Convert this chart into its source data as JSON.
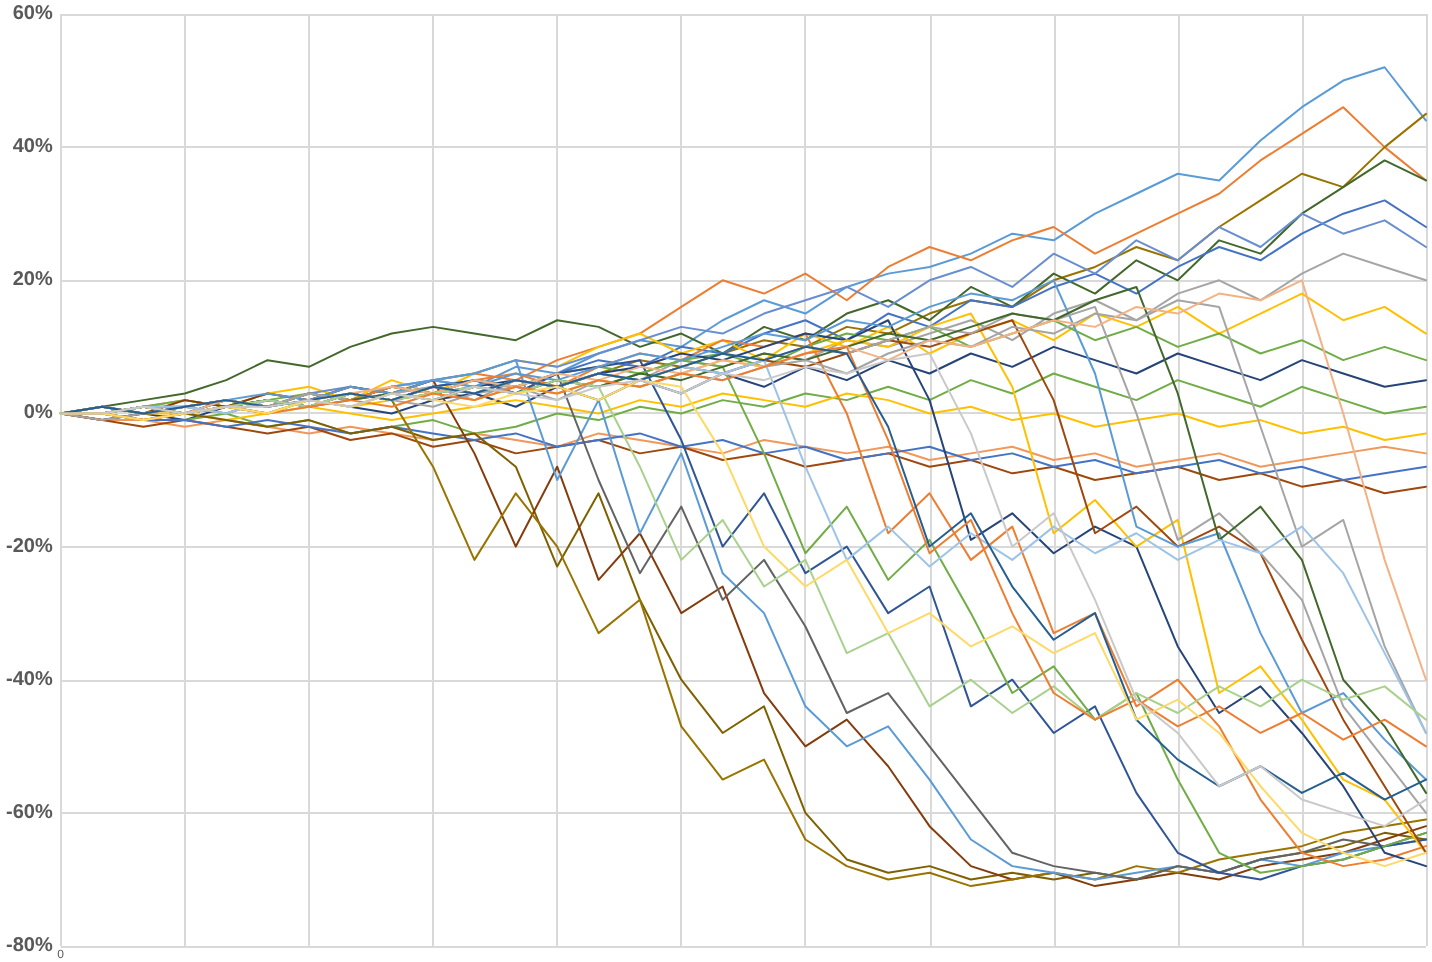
{
  "chart_data": {
    "type": "line",
    "grid": true,
    "marker": "none",
    "line_style": "solid",
    "categories": [
      "0",
      null,
      null,
      null,
      null,
      null,
      null,
      null,
      null,
      null,
      null,
      null,
      null,
      null,
      null,
      null,
      null,
      null,
      null,
      null,
      null,
      null,
      null,
      null,
      null,
      null,
      null,
      null,
      null,
      null,
      null,
      null,
      null,
      null
    ],
    "ylim": [
      -80,
      60
    ],
    "yticks": [
      {
        "value": -80,
        "label": "-80%"
      },
      {
        "value": -60,
        "label": "-60%"
      },
      {
        "value": -40,
        "label": "-40%"
      },
      {
        "value": -20,
        "label": "-20%"
      },
      {
        "value": 0,
        "label": "0%"
      },
      {
        "value": 20,
        "label": "20%"
      },
      {
        "value": 40,
        "label": "40%"
      },
      {
        "value": 60,
        "label": "60%"
      }
    ],
    "series": [
      {
        "color": "#5b9bd5",
        "values": [
          0,
          0,
          1,
          0,
          2,
          1,
          3,
          2,
          4,
          5,
          4,
          7,
          6,
          9,
          11,
          10,
          14,
          17,
          15,
          19,
          21,
          22,
          24,
          27,
          26,
          30,
          33,
          36,
          35,
          41,
          46,
          50,
          52,
          44
        ]
      },
      {
        "color": "#ed7d31",
        "values": [
          0,
          0,
          1,
          2,
          1,
          3,
          2,
          4,
          3,
          5,
          6,
          5,
          8,
          10,
          12,
          16,
          20,
          18,
          21,
          17,
          22,
          25,
          23,
          26,
          28,
          24,
          27,
          30,
          33,
          38,
          42,
          46,
          40,
          35
        ]
      },
      {
        "color": "#997300",
        "values": [
          0,
          -1,
          0,
          1,
          0,
          2,
          1,
          3,
          2,
          4,
          3,
          5,
          4,
          6,
          8,
          7,
          9,
          11,
          10,
          13,
          12,
          15,
          17,
          16,
          20,
          22,
          25,
          23,
          28,
          32,
          36,
          34,
          40,
          45
        ]
      },
      {
        "color": "#43682b",
        "values": [
          0,
          1,
          2,
          3,
          5,
          8,
          7,
          10,
          12,
          13,
          12,
          11,
          14,
          13,
          10,
          12,
          9,
          13,
          11,
          15,
          17,
          14,
          19,
          16,
          21,
          18,
          23,
          20,
          26,
          24,
          30,
          34,
          38,
          35
        ]
      },
      {
        "color": "#4472c4",
        "values": [
          0,
          0,
          -1,
          0,
          1,
          2,
          1,
          3,
          2,
          4,
          5,
          3,
          6,
          8,
          7,
          10,
          9,
          12,
          14,
          11,
          15,
          13,
          17,
          16,
          19,
          21,
          18,
          22,
          25,
          23,
          27,
          30,
          32,
          28
        ]
      },
      {
        "color": "#a5a5a5",
        "values": [
          0,
          0,
          1,
          0,
          2,
          1,
          3,
          2,
          3,
          4,
          2,
          5,
          4,
          6,
          5,
          8,
          7,
          9,
          8,
          11,
          10,
          12,
          14,
          11,
          15,
          17,
          14,
          18,
          20,
          17,
          21,
          24,
          22,
          20
        ]
      },
      {
        "color": "#ffc000",
        "values": [
          0,
          1,
          0,
          2,
          1,
          3,
          4,
          2,
          5,
          3,
          6,
          8,
          7,
          10,
          12,
          9,
          11,
          8,
          12,
          10,
          13,
          9,
          12,
          14,
          11,
          15,
          13,
          16,
          12,
          15,
          18,
          14,
          16,
          12
        ]
      },
      {
        "color": "#264478",
        "values": [
          0,
          -1,
          0,
          -1,
          1,
          0,
          2,
          1,
          0,
          2,
          3,
          1,
          4,
          2,
          5,
          3,
          6,
          4,
          7,
          5,
          8,
          6,
          9,
          7,
          10,
          8,
          6,
          9,
          7,
          5,
          8,
          6,
          4,
          5
        ]
      },
      {
        "color": "#70ad47",
        "values": [
          0,
          0,
          -1,
          -1,
          0,
          -2,
          -1,
          -3,
          -2,
          -1,
          -3,
          -2,
          0,
          -1,
          1,
          0,
          2,
          1,
          3,
          2,
          4,
          2,
          5,
          3,
          6,
          4,
          2,
          5,
          3,
          1,
          4,
          2,
          0,
          1
        ]
      },
      {
        "color": "#f1975a",
        "values": [
          0,
          -1,
          -1,
          -2,
          -1,
          -2,
          -3,
          -2,
          -3,
          -4,
          -3,
          -4,
          -5,
          -3,
          -4,
          -5,
          -6,
          -4,
          -5,
          -6,
          -5,
          -7,
          -6,
          -5,
          -7,
          -6,
          -8,
          -7,
          -6,
          -8,
          -7,
          -6,
          -5,
          -6
        ]
      },
      {
        "color": "#9e480e",
        "values": [
          0,
          -1,
          -2,
          -1,
          -2,
          -3,
          -2,
          -4,
          -3,
          -5,
          -4,
          -6,
          -5,
          -4,
          -6,
          -5,
          -7,
          -6,
          -8,
          -7,
          -6,
          -8,
          -7,
          -9,
          -8,
          -10,
          -9,
          -8,
          -10,
          -9,
          -11,
          -10,
          -12,
          -11
        ]
      },
      {
        "color": "#698ed0",
        "values": [
          0,
          1,
          0,
          1,
          2,
          1,
          3,
          4,
          3,
          5,
          6,
          8,
          7,
          9,
          11,
          13,
          12,
          15,
          17,
          19,
          16,
          20,
          22,
          19,
          24,
          21,
          26,
          23,
          28,
          25,
          30,
          27,
          29,
          25
        ]
      },
      {
        "color": "#4472c4",
        "values": [
          0,
          0,
          -1,
          -1,
          -2,
          -1,
          -2,
          -3,
          -2,
          -3,
          -4,
          -3,
          -5,
          -4,
          -3,
          -5,
          -4,
          -6,
          -5,
          -7,
          -6,
          -5,
          -7,
          -6,
          -8,
          -7,
          -9,
          -8,
          -7,
          -9,
          -8,
          -10,
          -9,
          -8
        ]
      },
      {
        "color": "#ffc000",
        "values": [
          0,
          1,
          0,
          0,
          -1,
          0,
          1,
          0,
          -1,
          0,
          1,
          2,
          1,
          0,
          2,
          1,
          3,
          2,
          1,
          3,
          2,
          0,
          1,
          -1,
          0,
          -2,
          -1,
          0,
          -2,
          -1,
          -3,
          -2,
          -4,
          -3
        ]
      },
      {
        "color": "#70ad47",
        "values": [
          0,
          0,
          1,
          2,
          1,
          2,
          3,
          2,
          4,
          3,
          5,
          4,
          6,
          7,
          6,
          8,
          9,
          7,
          10,
          12,
          11,
          13,
          10,
          12,
          14,
          11,
          13,
          10,
          12,
          9,
          11,
          8,
          10,
          8
        ]
      },
      {
        "color": "#7f6000",
        "values": [
          0,
          0,
          -1,
          0,
          -1,
          -2,
          -1,
          -3,
          -2,
          -4,
          -3,
          -8,
          -23,
          -12,
          -28,
          -40,
          -48,
          -44,
          -60,
          -67,
          -69,
          -68,
          -70,
          -69,
          -70,
          -69,
          -70,
          -68,
          -69,
          -67,
          -66,
          -65,
          -63,
          -64
        ]
      },
      {
        "color": "#843c0c",
        "values": [
          0,
          1,
          0,
          2,
          1,
          3,
          2,
          4,
          3,
          5,
          -6,
          -20,
          -8,
          -25,
          -18,
          -30,
          -26,
          -42,
          -50,
          -46,
          -53,
          -62,
          -68,
          -70,
          -69,
          -71,
          -70,
          -69,
          -70,
          -68,
          -67,
          -66,
          -64,
          -62
        ]
      },
      {
        "color": "#997300",
        "values": [
          0,
          0,
          1,
          0,
          1,
          2,
          1,
          3,
          2,
          -8,
          -22,
          -12,
          -20,
          -33,
          -28,
          -47,
          -55,
          -52,
          -64,
          -68,
          -70,
          -69,
          -71,
          -70,
          -69,
          -70,
          -68,
          -69,
          -67,
          -66,
          -65,
          -63,
          -62,
          -61
        ]
      },
      {
        "color": "#5b9bd5",
        "values": [
          0,
          1,
          0,
          1,
          2,
          1,
          3,
          2,
          4,
          5,
          6,
          8,
          -10,
          2,
          -18,
          -6,
          -24,
          -30,
          -44,
          -50,
          -47,
          -55,
          -64,
          -68,
          -69,
          -70,
          -69,
          -68,
          -69,
          -67,
          -68,
          -66,
          -65,
          -64
        ]
      },
      {
        "color": "#636363",
        "values": [
          0,
          0,
          1,
          1,
          2,
          1,
          3,
          2,
          4,
          3,
          5,
          4,
          6,
          -10,
          -24,
          -14,
          -28,
          -22,
          -32,
          -45,
          -42,
          -50,
          -58,
          -66,
          -68,
          -69,
          -70,
          -68,
          -69,
          -67,
          -66,
          -64,
          -65,
          -63
        ]
      },
      {
        "color": "#2f5597",
        "values": [
          0,
          0,
          1,
          0,
          2,
          1,
          2,
          3,
          2,
          4,
          5,
          3,
          6,
          7,
          8,
          -4,
          -20,
          -12,
          -24,
          -20,
          -30,
          -26,
          -44,
          -40,
          -48,
          -44,
          -57,
          -66,
          -69,
          -70,
          -68,
          -67,
          -65,
          -64
        ]
      },
      {
        "color": "#70ad47",
        "values": [
          0,
          0,
          -1,
          0,
          1,
          0,
          2,
          1,
          3,
          2,
          4,
          3,
          5,
          4,
          6,
          8,
          7,
          -6,
          -21,
          -14,
          -25,
          -19,
          -30,
          -42,
          -38,
          -46,
          -42,
          -55,
          -66,
          -69,
          -68,
          -67,
          -65,
          -63
        ]
      },
      {
        "color": "#ed7d31",
        "values": [
          0,
          1,
          0,
          1,
          2,
          1,
          3,
          2,
          4,
          3,
          5,
          6,
          4,
          7,
          9,
          8,
          11,
          10,
          12,
          0,
          -18,
          -12,
          -22,
          -17,
          -33,
          -30,
          -44,
          -40,
          -47,
          -58,
          -66,
          -68,
          -67,
          -65
        ]
      },
      {
        "color": "#264478",
        "values": [
          0,
          0,
          1,
          0,
          1,
          2,
          1,
          3,
          2,
          3,
          4,
          5,
          4,
          6,
          7,
          9,
          8,
          10,
          12,
          11,
          14,
          2,
          -19,
          -15,
          -21,
          -17,
          -20,
          -35,
          -45,
          -41,
          -48,
          -56,
          -66,
          -68
        ]
      },
      {
        "color": "#ffc000",
        "values": [
          0,
          0,
          -1,
          0,
          1,
          0,
          2,
          1,
          2,
          3,
          2,
          4,
          3,
          5,
          4,
          6,
          8,
          7,
          9,
          11,
          10,
          13,
          15,
          4,
          -18,
          -13,
          -20,
          -16,
          -42,
          -38,
          -46,
          -55,
          -58,
          -66
        ]
      },
      {
        "color": "#9e480e",
        "values": [
          0,
          0,
          1,
          0,
          1,
          2,
          1,
          3,
          2,
          4,
          3,
          5,
          4,
          6,
          5,
          7,
          6,
          8,
          7,
          9,
          11,
          10,
          12,
          14,
          2,
          -18,
          -14,
          -20,
          -17,
          -21,
          -34,
          -46,
          -56,
          -66
        ]
      },
      {
        "color": "#5b9bd5",
        "values": [
          0,
          1,
          0,
          1,
          2,
          3,
          2,
          4,
          3,
          5,
          4,
          6,
          5,
          7,
          9,
          8,
          10,
          12,
          11,
          14,
          13,
          16,
          18,
          17,
          20,
          6,
          -17,
          -20,
          -18,
          -33,
          -45,
          -42,
          -49,
          -55
        ]
      },
      {
        "color": "#a5a5a5",
        "values": [
          0,
          0,
          1,
          1,
          2,
          1,
          3,
          2,
          3,
          4,
          3,
          5,
          4,
          6,
          5,
          7,
          6,
          8,
          10,
          9,
          11,
          13,
          12,
          15,
          14,
          16,
          0,
          -19,
          -15,
          -21,
          -28,
          -44,
          -52,
          -60
        ]
      },
      {
        "color": "#43682b",
        "values": [
          0,
          0,
          1,
          0,
          1,
          2,
          1,
          2,
          3,
          2,
          4,
          3,
          5,
          4,
          6,
          5,
          7,
          9,
          8,
          10,
          12,
          11,
          13,
          15,
          14,
          17,
          19,
          3,
          -19,
          -14,
          -22,
          -40,
          -47,
          -57
        ]
      },
      {
        "color": "#a5a5a5",
        "values": [
          0,
          -1,
          0,
          1,
          0,
          2,
          1,
          3,
          2,
          1,
          3,
          4,
          2,
          5,
          4,
          6,
          5,
          7,
          8,
          6,
          9,
          11,
          10,
          13,
          12,
          15,
          14,
          17,
          16,
          -2,
          -20,
          -16,
          -35,
          -48
        ]
      },
      {
        "color": "#f4b183",
        "values": [
          0,
          0,
          1,
          0,
          2,
          1,
          2,
          3,
          4,
          3,
          5,
          4,
          6,
          5,
          7,
          6,
          8,
          7,
          9,
          10,
          8,
          11,
          10,
          12,
          14,
          13,
          16,
          15,
          18,
          17,
          20,
          0,
          -22,
          -40
        ]
      },
      {
        "color": "#9dc3e6",
        "values": [
          0,
          0,
          1,
          1,
          0,
          2,
          1,
          3,
          2,
          4,
          3,
          5,
          4,
          6,
          5,
          7,
          6,
          8,
          -8,
          -22,
          -17,
          -23,
          -18,
          -22,
          -17,
          -21,
          -18,
          -22,
          -19,
          -21,
          -17,
          -24,
          -36,
          -48
        ]
      },
      {
        "color": "#a9d18e",
        "values": [
          0,
          0,
          1,
          0,
          1,
          2,
          1,
          3,
          2,
          3,
          4,
          3,
          5,
          4,
          -8,
          -22,
          -16,
          -26,
          -22,
          -36,
          -33,
          -44,
          -40,
          -45,
          -41,
          -46,
          -42,
          -45,
          -41,
          -44,
          -40,
          -43,
          -41,
          -46
        ]
      },
      {
        "color": "#ed7d31",
        "values": [
          0,
          0,
          -1,
          0,
          1,
          0,
          1,
          2,
          1,
          3,
          2,
          4,
          3,
          5,
          4,
          6,
          5,
          7,
          9,
          10,
          -4,
          -21,
          -16,
          -30,
          -42,
          -46,
          -43,
          -47,
          -44,
          -48,
          -45,
          -49,
          -46,
          -50
        ]
      },
      {
        "color": "#255e91",
        "values": [
          0,
          1,
          0,
          1,
          2,
          1,
          2,
          3,
          2,
          4,
          3,
          5,
          4,
          6,
          5,
          7,
          9,
          8,
          10,
          9,
          -2,
          -20,
          -15,
          -26,
          -34,
          -30,
          -46,
          -52,
          -56,
          -53,
          -57,
          -54,
          -58,
          -55
        ]
      },
      {
        "color": "#ffd966",
        "values": [
          0,
          0,
          -1,
          0,
          1,
          0,
          2,
          1,
          3,
          2,
          1,
          3,
          4,
          2,
          5,
          4,
          -6,
          -20,
          -26,
          -22,
          -33,
          -30,
          -35,
          -32,
          -36,
          -33,
          -46,
          -43,
          -48,
          -56,
          -63,
          -66,
          -68,
          -66
        ]
      },
      {
        "color": "#c9c9c9",
        "values": [
          0,
          0,
          1,
          0,
          1,
          1,
          2,
          1,
          3,
          2,
          4,
          3,
          2,
          4,
          5,
          3,
          6,
          5,
          7,
          6,
          8,
          9,
          -3,
          -20,
          -15,
          -28,
          -43,
          -48,
          -56,
          -53,
          -58,
          -60,
          -62,
          -58
        ]
      }
    ]
  }
}
